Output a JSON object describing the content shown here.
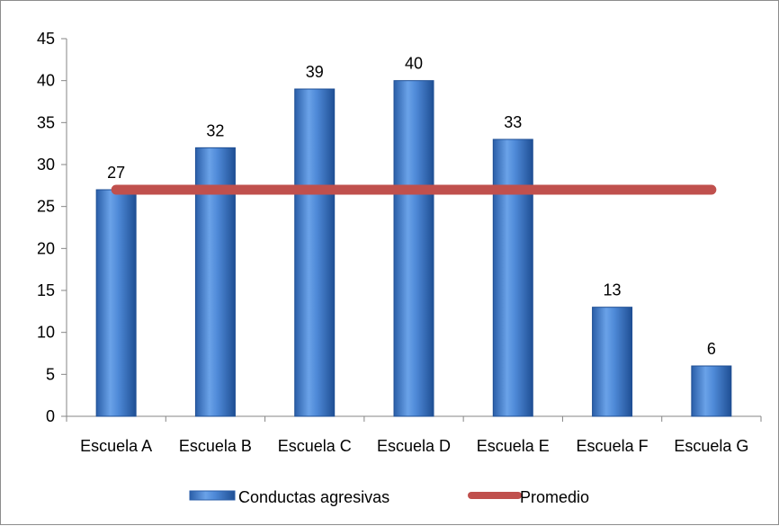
{
  "chart_data": {
    "type": "bar",
    "title": "",
    "xlabel": "",
    "ylabel": "",
    "categories": [
      "Escuela A",
      "Escuela B",
      "Escuela C",
      "Escuela D",
      "Escuela E",
      "Escuela F",
      "Escuela G"
    ],
    "series": [
      {
        "name": "Conductas agresivas",
        "type": "bar",
        "values": [
          27,
          32,
          39,
          40,
          33,
          13,
          6
        ],
        "color": "#3a78c9",
        "data_labels": [
          "27",
          "32",
          "39",
          "40",
          "33",
          "13",
          "6"
        ]
      },
      {
        "name": "Promedio",
        "type": "line",
        "values": [
          27,
          27,
          27,
          27,
          27,
          27,
          27
        ],
        "color": "#c0504d"
      }
    ],
    "ylim": [
      0,
      45
    ],
    "yticks": [
      "0",
      "5",
      "10",
      "15",
      "20",
      "25",
      "30",
      "35",
      "40",
      "45"
    ],
    "grid": false,
    "legend_position": "bottom"
  }
}
